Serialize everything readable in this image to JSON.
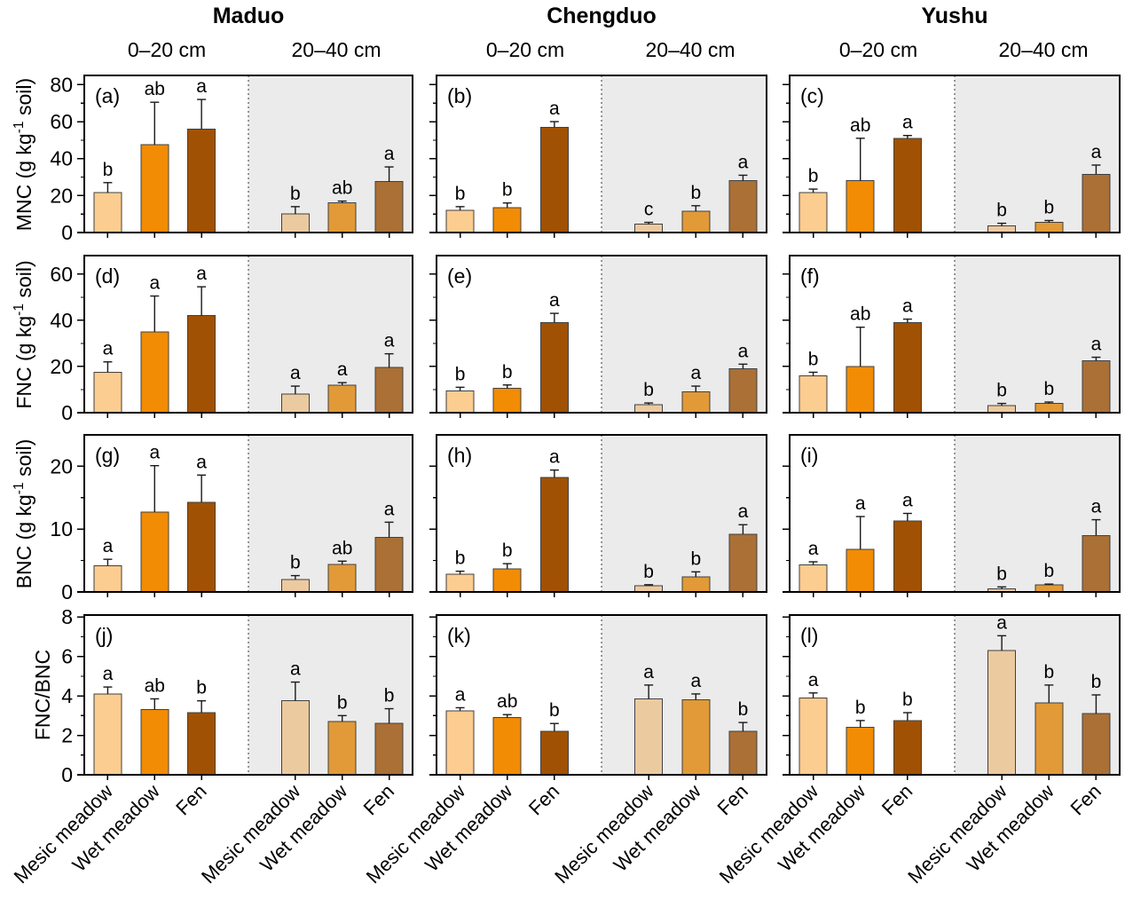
{
  "figure": {
    "columns": [
      {
        "title": "Maduo",
        "depths": [
          "0–20 cm",
          "20–40 cm"
        ]
      },
      {
        "title": "Chengduo",
        "depths": [
          "0–20 cm",
          "20–40 cm"
        ]
      },
      {
        "title": "Yushu",
        "depths": [
          "0–20 cm",
          "20–40 cm"
        ]
      }
    ],
    "rows": [
      {
        "measure": "MNC",
        "ylabel_prefix": "MNC (g kg",
        "ylabel_sup": "-1",
        "ylabel_suffix": " soil)",
        "ymax": 85,
        "major_ticks": [
          0,
          20,
          40,
          60,
          80
        ],
        "minor_ticks": [
          10,
          30,
          50,
          70
        ]
      },
      {
        "measure": "FNC",
        "ylabel_prefix": "FNC (g kg",
        "ylabel_sup": "-1",
        "ylabel_suffix": " soil)",
        "ymax": 68,
        "major_ticks": [
          0,
          20,
          40,
          60
        ],
        "minor_ticks": [
          10,
          30,
          50
        ]
      },
      {
        "measure": "BNC",
        "ylabel_prefix": "BNC (g kg",
        "ylabel_sup": "-1",
        "ylabel_suffix": " soil)",
        "ymax": 25,
        "major_ticks": [
          0,
          10,
          20
        ],
        "minor_ticks": [
          5,
          15
        ]
      },
      {
        "measure": "FNC/BNC",
        "ylabel_prefix": "FNC/BNC",
        "ylabel_sup": "",
        "ylabel_suffix": "",
        "ymax": 8.1,
        "major_ticks": [
          0,
          2,
          4,
          6,
          8
        ],
        "minor_ticks": [
          1,
          3,
          5,
          7
        ]
      }
    ],
    "x_categories": [
      "Mesic meadow",
      "Wet meadow",
      "Fen"
    ],
    "colors": {
      "bar_fill_0_20": [
        "#fccd90",
        "#f28c05",
        "#a15104"
      ],
      "bar_fill_20_40": [
        "#eccaa0",
        "#e19a37",
        "#aa7036"
      ],
      "bar_stroke": "#404040",
      "shade_bg": "#ebebeb",
      "axis": "#000000",
      "error": "#1a1a1a",
      "divider": "#555555"
    }
  },
  "chart_data": [
    {
      "panel": "(a)",
      "type": "bar",
      "measure": "MNC",
      "region": "Maduo",
      "ylabel": "MNC (g kg-1 soil)",
      "ymax": 85,
      "categories": [
        "Mesic meadow",
        "Wet meadow",
        "Fen"
      ],
      "groups": [
        {
          "depth": "0–20 cm",
          "values": [
            21.5,
            47.5,
            56
          ],
          "errors": [
            5.5,
            23,
            16
          ],
          "letters": [
            "b",
            "ab",
            "a"
          ]
        },
        {
          "depth": "20–40 cm",
          "values": [
            10,
            16,
            27.5
          ],
          "errors": [
            4,
            1,
            8
          ],
          "letters": [
            "b",
            "ab",
            "a"
          ]
        }
      ]
    },
    {
      "panel": "(b)",
      "type": "bar",
      "measure": "MNC",
      "region": "Chengduo",
      "ylabel": "MNC (g kg-1 soil)",
      "ymax": 85,
      "categories": [
        "Mesic meadow",
        "Wet meadow",
        "Fen"
      ],
      "groups": [
        {
          "depth": "0–20 cm",
          "values": [
            12,
            13.5,
            57
          ],
          "errors": [
            2,
            2.5,
            3
          ],
          "letters": [
            "b",
            "b",
            "a"
          ]
        },
        {
          "depth": "20–40 cm",
          "values": [
            4.5,
            11.5,
            28
          ],
          "errors": [
            1,
            3,
            3
          ],
          "letters": [
            "c",
            "b",
            "a"
          ]
        }
      ]
    },
    {
      "panel": "(c)",
      "type": "bar",
      "measure": "MNC",
      "region": "Yushu",
      "ylabel": "MNC (g kg-1 soil)",
      "ymax": 85,
      "categories": [
        "Mesic meadow",
        "Wet meadow",
        "Fen"
      ],
      "groups": [
        {
          "depth": "0–20 cm",
          "values": [
            21.5,
            28,
            51
          ],
          "errors": [
            2,
            23,
            1.5
          ],
          "letters": [
            "b",
            "ab",
            "a"
          ]
        },
        {
          "depth": "20–40 cm",
          "values": [
            3.5,
            5.5,
            31.5
          ],
          "errors": [
            1.5,
            1,
            5
          ],
          "letters": [
            "b",
            "b",
            "a"
          ]
        }
      ]
    },
    {
      "panel": "(d)",
      "type": "bar",
      "measure": "FNC",
      "region": "Maduo",
      "ylabel": "FNC (g kg-1 soil)",
      "ymax": 68,
      "categories": [
        "Mesic meadow",
        "Wet meadow",
        "Fen"
      ],
      "groups": [
        {
          "depth": "0–20 cm",
          "values": [
            17.5,
            35,
            42
          ],
          "errors": [
            4.5,
            15.5,
            12.5
          ],
          "letters": [
            "a",
            "a",
            "a"
          ]
        },
        {
          "depth": "20–40 cm",
          "values": [
            8,
            12,
            19.5
          ],
          "errors": [
            3.5,
            1,
            6
          ],
          "letters": [
            "a",
            "a",
            "a"
          ]
        }
      ]
    },
    {
      "panel": "(e)",
      "type": "bar",
      "measure": "FNC",
      "region": "Chengduo",
      "ylabel": "FNC (g kg-1 soil)",
      "ymax": 68,
      "categories": [
        "Mesic meadow",
        "Wet meadow",
        "Fen"
      ],
      "groups": [
        {
          "depth": "0–20 cm",
          "values": [
            9.5,
            10.5,
            39
          ],
          "errors": [
            1.5,
            1.5,
            4
          ],
          "letters": [
            "b",
            "b",
            "a"
          ]
        },
        {
          "depth": "20–40 cm",
          "values": [
            3.5,
            9,
            19
          ],
          "errors": [
            0.7,
            2.5,
            2
          ],
          "letters": [
            "b",
            "a",
            "a"
          ]
        }
      ]
    },
    {
      "panel": "(f)",
      "type": "bar",
      "measure": "FNC",
      "region": "Yushu",
      "ylabel": "FNC (g kg-1 soil)",
      "ymax": 68,
      "categories": [
        "Mesic meadow",
        "Wet meadow",
        "Fen"
      ],
      "groups": [
        {
          "depth": "0–20 cm",
          "values": [
            16,
            20,
            39
          ],
          "errors": [
            1.5,
            17,
            1.5
          ],
          "letters": [
            "b",
            "ab",
            "a"
          ]
        },
        {
          "depth": "20–40 cm",
          "values": [
            3,
            4,
            22.5
          ],
          "errors": [
            1,
            0.6,
            1.5
          ],
          "letters": [
            "b",
            "b",
            "a"
          ]
        }
      ]
    },
    {
      "panel": "(g)",
      "type": "bar",
      "measure": "BNC",
      "region": "Maduo",
      "ylabel": "BNC (g kg-1 soil)",
      "ymax": 25,
      "categories": [
        "Mesic meadow",
        "Wet meadow",
        "Fen"
      ],
      "groups": [
        {
          "depth": "0–20 cm",
          "values": [
            4.2,
            12.7,
            14.3
          ],
          "errors": [
            1,
            7.4,
            4.3
          ],
          "letters": [
            "a",
            "a",
            "a"
          ]
        },
        {
          "depth": "20–40 cm",
          "values": [
            2,
            4.4,
            8.7
          ],
          "errors": [
            0.6,
            0.5,
            2.4
          ],
          "letters": [
            "b",
            "ab",
            "a"
          ]
        }
      ]
    },
    {
      "panel": "(h)",
      "type": "bar",
      "measure": "BNC",
      "region": "Chengduo",
      "ylabel": "BNC (g kg-1 soil)",
      "ymax": 25,
      "categories": [
        "Mesic meadow",
        "Wet meadow",
        "Fen"
      ],
      "groups": [
        {
          "depth": "0–20 cm",
          "values": [
            2.8,
            3.7,
            18.2
          ],
          "errors": [
            0.5,
            0.8,
            1.2
          ],
          "letters": [
            "b",
            "b",
            "a"
          ]
        },
        {
          "depth": "20–40 cm",
          "values": [
            1,
            2.4,
            9.2
          ],
          "errors": [
            0.15,
            0.8,
            1.5
          ],
          "letters": [
            "b",
            "b",
            "a"
          ]
        }
      ]
    },
    {
      "panel": "(i)",
      "type": "bar",
      "measure": "BNC",
      "region": "Yushu",
      "ylabel": "BNC (g kg-1 soil)",
      "ymax": 25,
      "categories": [
        "Mesic meadow",
        "Wet meadow",
        "Fen"
      ],
      "groups": [
        {
          "depth": "0–20 cm",
          "values": [
            4.3,
            6.8,
            11.3
          ],
          "errors": [
            0.5,
            5.2,
            1.2
          ],
          "letters": [
            "a",
            "a",
            "a"
          ]
        },
        {
          "depth": "20–40 cm",
          "values": [
            0.5,
            1.1,
            9
          ],
          "errors": [
            0.3,
            0.15,
            2.5
          ],
          "letters": [
            "b",
            "b",
            "a"
          ]
        }
      ]
    },
    {
      "panel": "(j)",
      "type": "bar",
      "measure": "FNC/BNC",
      "region": "Maduo",
      "ylabel": "FNC/BNC",
      "ymax": 8.1,
      "categories": [
        "Mesic meadow",
        "Wet meadow",
        "Fen"
      ],
      "groups": [
        {
          "depth": "0–20 cm",
          "values": [
            4.1,
            3.3,
            3.15
          ],
          "errors": [
            0.35,
            0.55,
            0.6
          ],
          "letters": [
            "a",
            "ab",
            "b"
          ]
        },
        {
          "depth": "20–40 cm",
          "values": [
            3.75,
            2.7,
            2.6
          ],
          "errors": [
            0.95,
            0.3,
            0.75
          ],
          "letters": [
            "a",
            "b",
            "b"
          ]
        }
      ]
    },
    {
      "panel": "(k)",
      "type": "bar",
      "measure": "FNC/BNC",
      "region": "Chengduo",
      "ylabel": "FNC/BNC",
      "ymax": 8.1,
      "categories": [
        "Mesic meadow",
        "Wet meadow",
        "Fen"
      ],
      "groups": [
        {
          "depth": "0–20 cm",
          "values": [
            3.25,
            2.9,
            2.2
          ],
          "errors": [
            0.15,
            0.15,
            0.4
          ],
          "letters": [
            "a",
            "ab",
            "b"
          ]
        },
        {
          "depth": "20–40 cm",
          "values": [
            3.85,
            3.8,
            2.2
          ],
          "errors": [
            0.7,
            0.3,
            0.45
          ],
          "letters": [
            "a",
            "a",
            "b"
          ]
        }
      ]
    },
    {
      "panel": "(l)",
      "type": "bar",
      "measure": "FNC/BNC",
      "region": "Yushu",
      "ylabel": "FNC/BNC",
      "ymax": 8.1,
      "categories": [
        "Mesic meadow",
        "Wet meadow",
        "Fen"
      ],
      "groups": [
        {
          "depth": "0–20 cm",
          "values": [
            3.9,
            2.4,
            2.75
          ],
          "errors": [
            0.25,
            0.35,
            0.4
          ],
          "letters": [
            "a",
            "b",
            "b"
          ]
        },
        {
          "depth": "20–40 cm",
          "values": [
            6.3,
            3.65,
            3.1
          ],
          "errors": [
            0.75,
            0.9,
            0.95
          ],
          "letters": [
            "a",
            "b",
            "b"
          ]
        }
      ]
    }
  ]
}
